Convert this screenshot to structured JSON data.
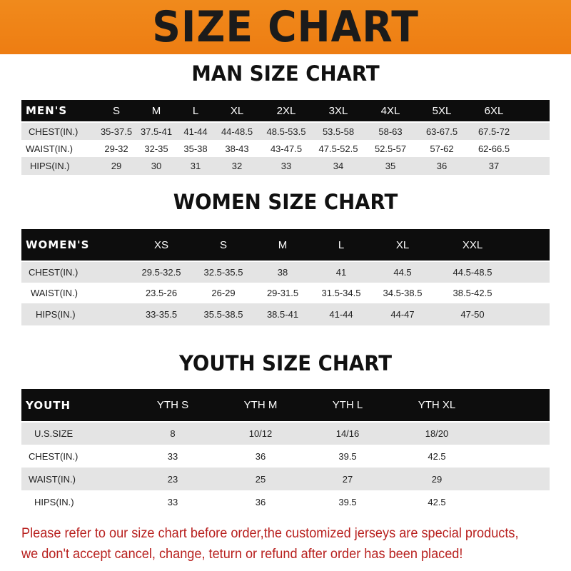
{
  "title": "SIZE CHART",
  "men": {
    "title": "MAN SIZE CHART",
    "header": [
      "MEN'S",
      "S",
      "M",
      "L",
      "XL",
      "2XL",
      "3XL",
      "4XL",
      "5XL",
      "6XL"
    ],
    "rows": [
      [
        "CHEST(IN.)",
        "35-37.5",
        "37.5-41",
        "41-44",
        "44-48.5",
        "48.5-53.5",
        "53.5-58",
        "58-63",
        "63-67.5",
        "67.5-72"
      ],
      [
        "WAIST(IN.)",
        "29-32",
        "32-35",
        "35-38",
        "38-43",
        "43-47.5",
        "47.5-52.5",
        "52.5-57",
        "57-62",
        "62-66.5"
      ],
      [
        "HIPS(IN.)",
        "29",
        "30",
        "31",
        "32",
        "33",
        "34",
        "35",
        "36",
        "37"
      ]
    ]
  },
  "women": {
    "title": "WOMEN SIZE CHART",
    "header": [
      "WOMEN'S",
      "XS",
      "S",
      "M",
      "L",
      "XL",
      "XXL"
    ],
    "rows": [
      [
        "CHEST(IN.)",
        "29.5-32.5",
        "32.5-35.5",
        "38",
        "41",
        "44.5",
        "44.5-48.5"
      ],
      [
        "WAIST(IN.)",
        "23.5-26",
        "26-29",
        "29-31.5",
        "31.5-34.5",
        "34.5-38.5",
        "38.5-42.5"
      ],
      [
        "HIPS(IN.)",
        "33-35.5",
        "35.5-38.5",
        "38.5-41",
        "41-44",
        "44-47",
        "47-50"
      ]
    ]
  },
  "youth": {
    "title": "YOUTH SIZE CHART",
    "header": [
      "YOUTH",
      "YTH S",
      "YTH M",
      "YTH L",
      "YTH XL"
    ],
    "rows": [
      [
        "U.S.SIZE",
        "8",
        "10/12",
        "14/16",
        "18/20"
      ],
      [
        "CHEST(IN.)",
        "33",
        "36",
        "39.5",
        "42.5"
      ],
      [
        "WAIST(IN.)",
        "23",
        "25",
        "27",
        "29"
      ],
      [
        "HIPS(IN.)",
        "33",
        "36",
        "39.5",
        "42.5"
      ]
    ]
  },
  "notice": [
    "Please refer to our size chart before order,the customized jerseys are special products,",
    "we don't accept cancel, change, teturn or refund after order has been placed!"
  ],
  "colors": {
    "banner": "#ef8317",
    "header_row": "#0d0d0d",
    "alt_row": "#e4e4e4",
    "notice": "#b8201e"
  }
}
